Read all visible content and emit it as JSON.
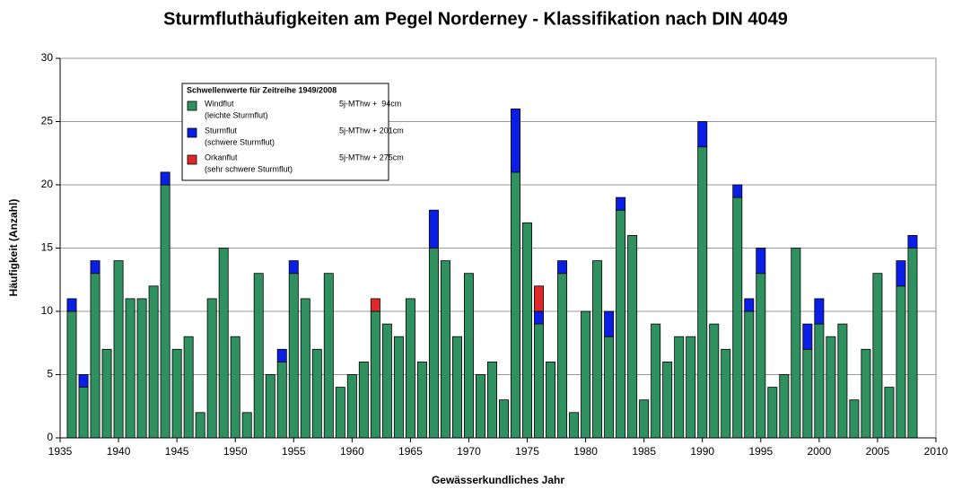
{
  "chart_data": {
    "type": "stacked_bar",
    "title": "Sturmfluthäufigkeiten am Pegel Norderney - Klassifikation nach DIN 4049",
    "x_label": "Gewässerkundliches Jahr",
    "y_label": "Häufigkeit (Anzahl)",
    "legend_title": "Schwellenwerte für Zeitreihe 1949/2008",
    "x": [
      1936,
      1937,
      1938,
      1939,
      1940,
      1941,
      1942,
      1943,
      1944,
      1945,
      1946,
      1947,
      1948,
      1949,
      1950,
      1951,
      1952,
      1953,
      1954,
      1955,
      1956,
      1957,
      1958,
      1959,
      1960,
      1961,
      1962,
      1963,
      1964,
      1965,
      1966,
      1967,
      1968,
      1969,
      1970,
      1971,
      1972,
      1973,
      1974,
      1975,
      1976,
      1977,
      1978,
      1979,
      1980,
      1981,
      1982,
      1983,
      1984,
      1985,
      1986,
      1987,
      1988,
      1989,
      1990,
      1991,
      1992,
      1993,
      1994,
      1995,
      1996,
      1997,
      1998,
      1999,
      2000,
      2001,
      2002,
      2003,
      2004,
      2005,
      2006,
      2007,
      2008
    ],
    "series": [
      {
        "name": "Windflut",
        "description": "(leichte Sturmflut)",
        "threshold": "5j-MThw +  94cm",
        "color": "#2f9160",
        "values": [
          10,
          4,
          13,
          7,
          14,
          11,
          11,
          12,
          20,
          7,
          8,
          2,
          11,
          15,
          8,
          2,
          13,
          5,
          6,
          13,
          11,
          7,
          13,
          4,
          5,
          6,
          10,
          9,
          8,
          11,
          6,
          15,
          14,
          8,
          13,
          5,
          6,
          3,
          21,
          17,
          9,
          6,
          13,
          2,
          10,
          14,
          8,
          18,
          16,
          3,
          9,
          6,
          8,
          8,
          23,
          9,
          7,
          19,
          10,
          13,
          4,
          5,
          15,
          7,
          9,
          8,
          9,
          3,
          7,
          13,
          4,
          12,
          15
        ]
      },
      {
        "name": "Sturmflut",
        "description": "(schwere Sturmflut)",
        "threshold": "5j-MThw + 201cm",
        "color": "#0a1ee6",
        "values": [
          1,
          1,
          1,
          0,
          0,
          0,
          0,
          0,
          1,
          0,
          0,
          0,
          0,
          0,
          0,
          0,
          0,
          0,
          1,
          1,
          0,
          0,
          0,
          0,
          0,
          0,
          0,
          0,
          0,
          0,
          0,
          3,
          0,
          0,
          0,
          0,
          0,
          0,
          5,
          0,
          1,
          0,
          1,
          0,
          0,
          0,
          2,
          1,
          0,
          0,
          0,
          0,
          0,
          0,
          2,
          0,
          0,
          1,
          1,
          2,
          0,
          0,
          0,
          2,
          2,
          0,
          0,
          0,
          0,
          0,
          0,
          2,
          1
        ]
      },
      {
        "name": "Orkanflut",
        "description": "(sehr schwere Sturmflut)",
        "threshold": "5j-MThw + 275cm",
        "color": "#e02828",
        "values": [
          0,
          0,
          0,
          0,
          0,
          0,
          0,
          0,
          0,
          0,
          0,
          0,
          0,
          0,
          0,
          0,
          0,
          0,
          0,
          0,
          0,
          0,
          0,
          0,
          0,
          0,
          1,
          0,
          0,
          0,
          0,
          0,
          0,
          0,
          0,
          0,
          0,
          0,
          0,
          0,
          2,
          0,
          0,
          0,
          0,
          0,
          0,
          0,
          0,
          0,
          0,
          0,
          0,
          0,
          0,
          0,
          0,
          0,
          0,
          0,
          0,
          0,
          0,
          0,
          0,
          0,
          0,
          0,
          0,
          0,
          0,
          0,
          0
        ]
      }
    ],
    "xlim": [
      1935,
      2010
    ],
    "xticks": [
      1935,
      1940,
      1945,
      1950,
      1955,
      1960,
      1965,
      1970,
      1975,
      1980,
      1985,
      1990,
      1995,
      2000,
      2005,
      2010
    ],
    "ylim": [
      0,
      30
    ],
    "yticks": [
      0,
      5,
      10,
      15,
      20,
      25,
      30
    ],
    "grid": true,
    "legend": "upper left"
  }
}
